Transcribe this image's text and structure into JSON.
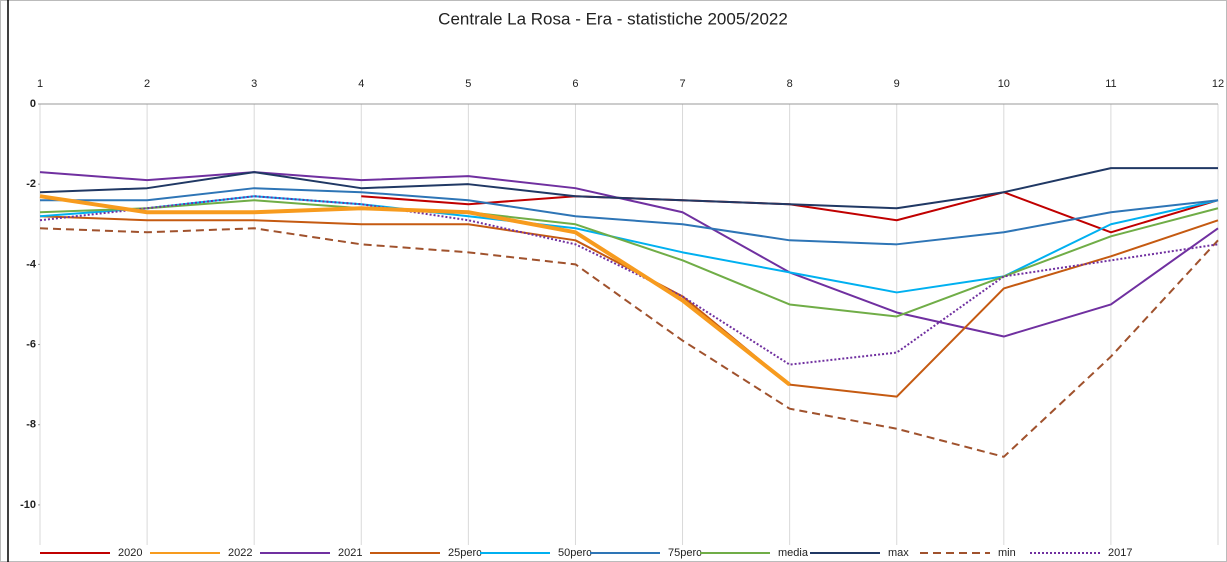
{
  "chart_data": {
    "type": "line",
    "title": "Centrale La Rosa - Era - statistiche 2005/2022",
    "x": [
      1,
      2,
      3,
      4,
      5,
      6,
      7,
      8,
      9,
      10,
      11,
      12
    ],
    "xlim": [
      1,
      12
    ],
    "xticks": [
      1,
      2,
      3,
      4,
      5,
      6,
      7,
      8,
      9,
      10,
      11,
      12
    ],
    "ylim": [
      -11,
      0
    ],
    "yticks": [
      0,
      -2,
      -4,
      -6,
      -8,
      -10
    ],
    "grid": "x",
    "x_axis_position": "top",
    "legend": "bottom",
    "series": [
      {
        "name": "2020",
        "color": "#c00000",
        "values": [
          null,
          null,
          null,
          -2.3,
          -2.5,
          -2.3,
          -2.4,
          -2.5,
          -2.9,
          -2.2,
          -3.2,
          -2.4
        ]
      },
      {
        "name": "2022",
        "color": "#f79b1e",
        "width": 4,
        "values": [
          -2.3,
          -2.7,
          -2.7,
          -2.6,
          -2.7,
          -3.2,
          -4.9,
          -7.0,
          null,
          null,
          null,
          null
        ]
      },
      {
        "name": "2021",
        "color": "#7030a0",
        "values": [
          -1.7,
          -1.9,
          -1.7,
          -1.9,
          -1.8,
          -2.1,
          -2.7,
          -4.2,
          -5.2,
          -5.8,
          -5.0,
          -3.1
        ]
      },
      {
        "name": "25perc",
        "color": "#c55a11",
        "values": [
          -2.8,
          -2.9,
          -2.9,
          -3.0,
          -3.0,
          -3.4,
          -4.8,
          -7.0,
          -7.3,
          -4.6,
          -3.8,
          -2.9
        ]
      },
      {
        "name": "50perc",
        "color": "#00b0f0",
        "values": [
          -2.8,
          -2.6,
          -2.3,
          -2.5,
          -2.8,
          -3.1,
          -3.7,
          -4.2,
          -4.7,
          -4.3,
          -3.0,
          -2.4
        ]
      },
      {
        "name": "75perc",
        "color": "#2e75b6",
        "values": [
          -2.4,
          -2.4,
          -2.1,
          -2.2,
          -2.4,
          -2.8,
          -3.0,
          -3.4,
          -3.5,
          -3.2,
          -2.7,
          -2.4
        ]
      },
      {
        "name": "media",
        "color": "#70ad47",
        "values": [
          -2.7,
          -2.6,
          -2.4,
          -2.6,
          -2.7,
          -3.0,
          -3.9,
          -5.0,
          -5.3,
          -4.3,
          -3.3,
          -2.6
        ]
      },
      {
        "name": "max",
        "color": "#203864",
        "values": [
          -2.2,
          -2.1,
          -1.7,
          -2.1,
          -2.0,
          -2.3,
          -2.4,
          -2.5,
          -2.6,
          -2.2,
          -1.6,
          -1.6
        ]
      },
      {
        "name": "min",
        "color": "#a0522d",
        "dash": "dashed",
        "values": [
          -3.1,
          -3.2,
          -3.1,
          -3.5,
          -3.7,
          -4.0,
          -5.9,
          -7.6,
          -8.1,
          -8.8,
          -6.3,
          -3.4
        ]
      },
      {
        "name": "2017",
        "color": "#7030a0",
        "dash": "dotted",
        "values": [
          -2.9,
          -2.6,
          -2.3,
          -2.5,
          -2.9,
          -3.5,
          -4.8,
          -6.5,
          -6.2,
          -4.3,
          -3.9,
          -3.5
        ]
      }
    ]
  }
}
